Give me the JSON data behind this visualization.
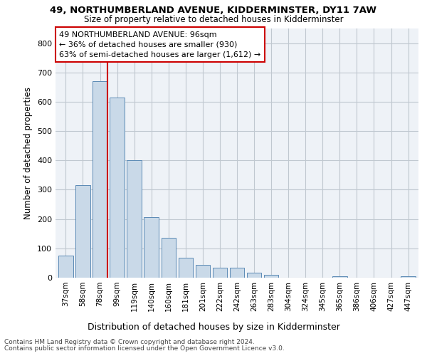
{
  "title1": "49, NORTHUMBERLAND AVENUE, KIDDERMINSTER, DY11 7AW",
  "title2": "Size of property relative to detached houses in Kidderminster",
  "xlabel": "Distribution of detached houses by size in Kidderminster",
  "ylabel": "Number of detached properties",
  "footer1": "Contains HM Land Registry data © Crown copyright and database right 2024.",
  "footer2": "Contains public sector information licensed under the Open Government Licence v3.0.",
  "annotation_title": "49 NORTHUMBERLAND AVENUE: 96sqm",
  "annotation_line2": "← 36% of detached houses are smaller (930)",
  "annotation_line3": "63% of semi-detached houses are larger (1,612) →",
  "bar_color": "#c9d9e8",
  "bar_edge_color": "#5a8ab5",
  "vline_color": "#cc0000",
  "categories": [
    "37sqm",
    "58sqm",
    "78sqm",
    "99sqm",
    "119sqm",
    "140sqm",
    "160sqm",
    "181sqm",
    "201sqm",
    "222sqm",
    "242sqm",
    "263sqm",
    "283sqm",
    "304sqm",
    "324sqm",
    "345sqm",
    "365sqm",
    "386sqm",
    "406sqm",
    "427sqm",
    "447sqm"
  ],
  "values": [
    75,
    315,
    670,
    615,
    400,
    207,
    137,
    68,
    44,
    33,
    33,
    18,
    10,
    0,
    0,
    0,
    6,
    0,
    0,
    0,
    5
  ],
  "ylim": [
    0,
    850
  ],
  "yticks": [
    0,
    100,
    200,
    300,
    400,
    500,
    600,
    700,
    800
  ],
  "vline_x": 2.425,
  "grid_color": "#c0c8d0",
  "background_color": "#eef2f7",
  "figsize": [
    6.0,
    5.0
  ],
  "dpi": 100
}
